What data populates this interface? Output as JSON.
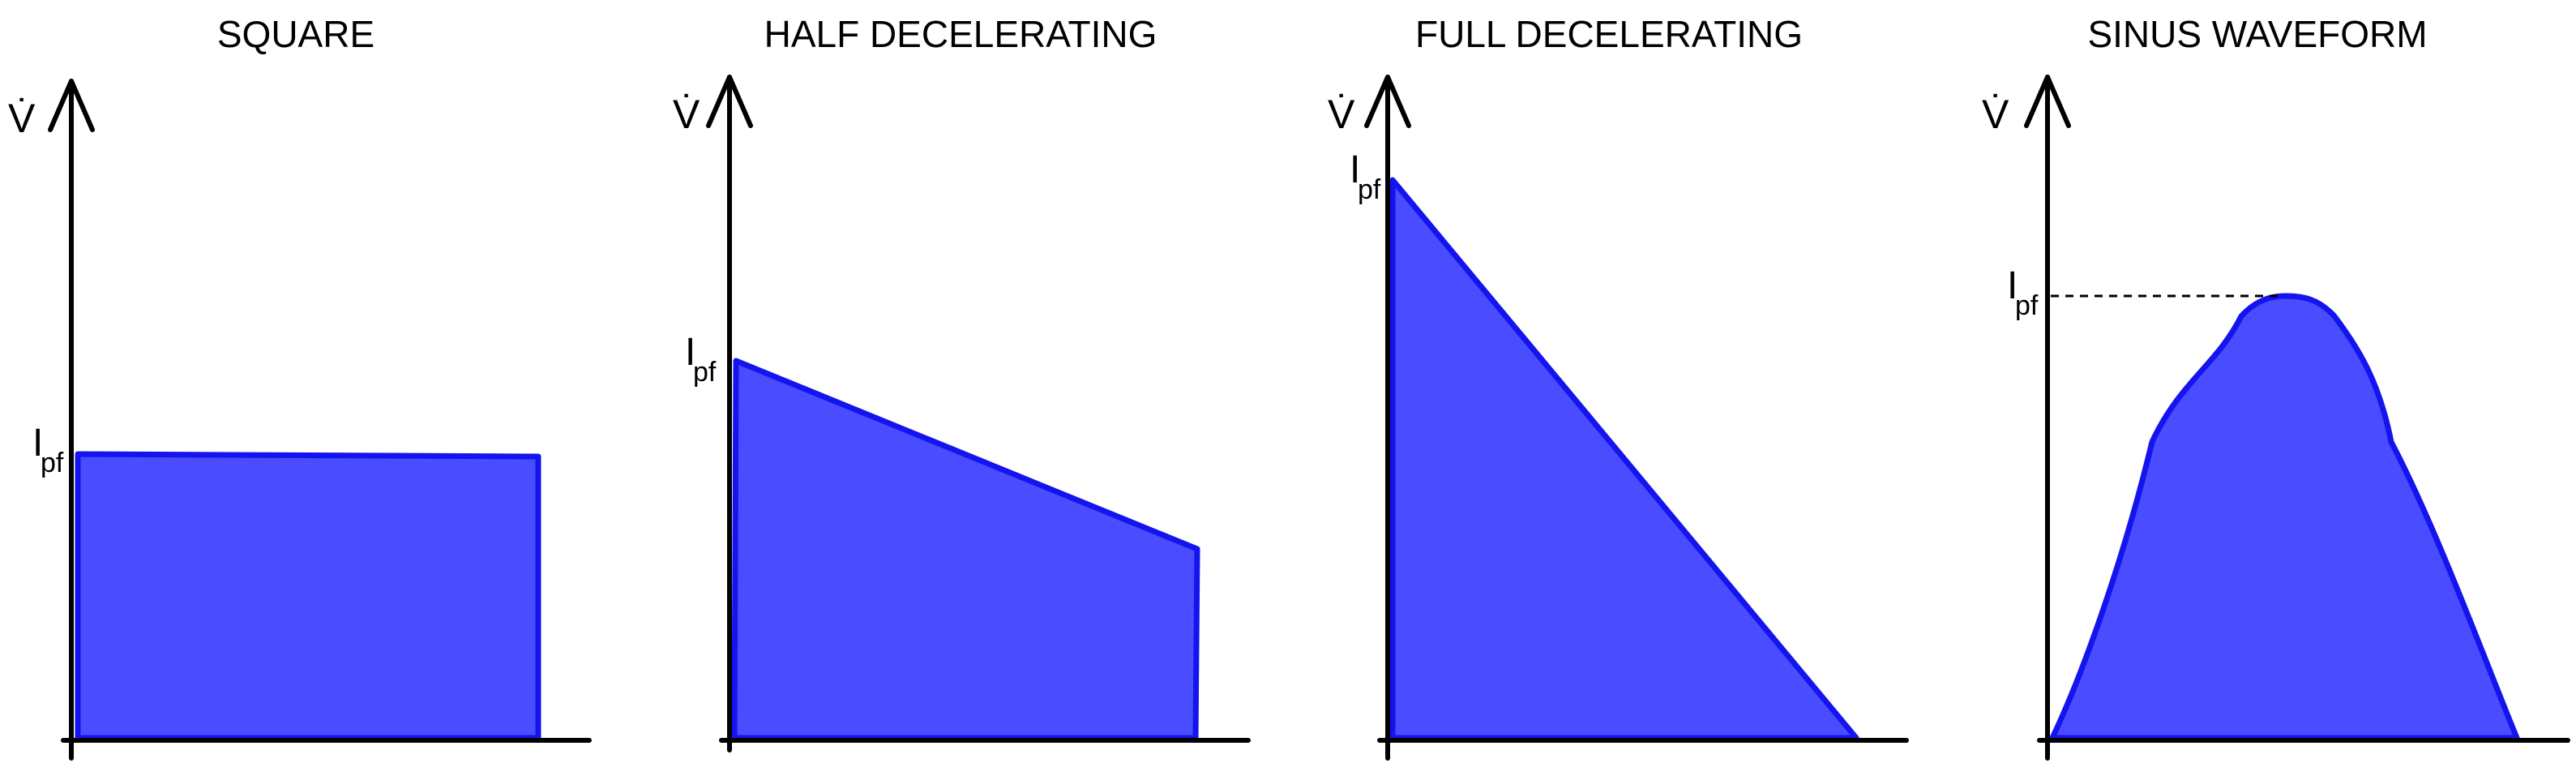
{
  "figure": {
    "colors": {
      "fill": "#4a4cff",
      "stroke": "#1414ee",
      "axis": "#000000"
    },
    "panels": [
      {
        "id": "square",
        "title": "SQUARE",
        "y_axis_label": "V̇",
        "peak_label": {
          "main": "I",
          "sub": "pf"
        },
        "shape": "rectangle"
      },
      {
        "id": "half-decelerating",
        "title": "HALF DECELERATING",
        "y_axis_label": "V̇",
        "peak_label": {
          "main": "I",
          "sub": "pf"
        },
        "shape": "trapezoid"
      },
      {
        "id": "full-decelerating",
        "title": "FULL DECELERATING",
        "y_axis_label": "V̇",
        "peak_label": {
          "main": "I",
          "sub": "pf"
        },
        "shape": "triangle"
      },
      {
        "id": "sinus-waveform",
        "title": "SINUS WAVEFORM",
        "y_axis_label": "V̇",
        "peak_label": {
          "main": "I",
          "sub": "pf"
        },
        "shape": "half-sine",
        "peak_line": "dashed"
      }
    ]
  }
}
